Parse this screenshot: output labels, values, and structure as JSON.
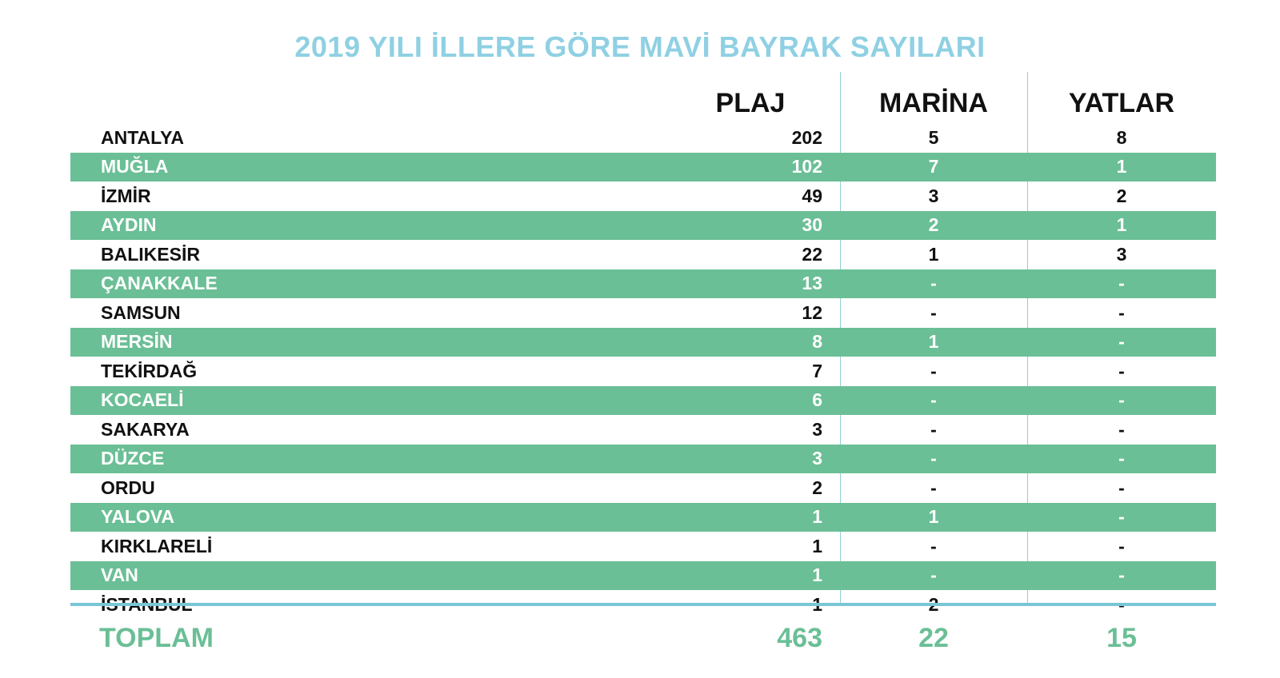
{
  "chart_data": {
    "type": "table",
    "title": "2019 YILI İLLERE GÖRE MAVİ BAYRAK SAYILARI",
    "columns": [
      "PLAJ",
      "MARİNA",
      "YATLAR"
    ],
    "rows": [
      {
        "name": "ANTALYA",
        "plaj": "202",
        "marina": "5",
        "yatlar": "8"
      },
      {
        "name": "MUĞLA",
        "plaj": "102",
        "marina": "7",
        "yatlar": "1"
      },
      {
        "name": "İZMİR",
        "plaj": "49",
        "marina": "3",
        "yatlar": "2"
      },
      {
        "name": "AYDIN",
        "plaj": "30",
        "marina": "2",
        "yatlar": "1"
      },
      {
        "name": "BALIKESİR",
        "plaj": "22",
        "marina": "1",
        "yatlar": "3"
      },
      {
        "name": "ÇANAKKALE",
        "plaj": "13",
        "marina": "-",
        "yatlar": "-"
      },
      {
        "name": "SAMSUN",
        "plaj": "12",
        "marina": "-",
        "yatlar": "-"
      },
      {
        "name": "MERSİN",
        "plaj": "8",
        "marina": "1",
        "yatlar": "-"
      },
      {
        "name": "TEKİRDAĞ",
        "plaj": "7",
        "marina": "-",
        "yatlar": "-"
      },
      {
        "name": "KOCAELİ",
        "plaj": "6",
        "marina": "-",
        "yatlar": "-"
      },
      {
        "name": "SAKARYA",
        "plaj": "3",
        "marina": "-",
        "yatlar": "-"
      },
      {
        "name": "DÜZCE",
        "plaj": "3",
        "marina": "-",
        "yatlar": "-"
      },
      {
        "name": "ORDU",
        "plaj": "2",
        "marina": "-",
        "yatlar": "-"
      },
      {
        "name": "YALOVA",
        "plaj": "1",
        "marina": "1",
        "yatlar": "-"
      },
      {
        "name": "KIRKLARELİ",
        "plaj": "1",
        "marina": "-",
        "yatlar": "-"
      },
      {
        "name": "VAN",
        "plaj": "1",
        "marina": "-",
        "yatlar": "-"
      },
      {
        "name": "İSTANBUL",
        "plaj": "1",
        "marina": "2",
        "yatlar": "-"
      }
    ],
    "total": {
      "label": "TOPLAM",
      "plaj": "463",
      "marina": "22",
      "yatlar": "15"
    }
  },
  "colors": {
    "title": "#8fd0e3",
    "stripe": "#6bbf96",
    "divider": "#79c6d6",
    "total_text": "#6bbf96"
  }
}
